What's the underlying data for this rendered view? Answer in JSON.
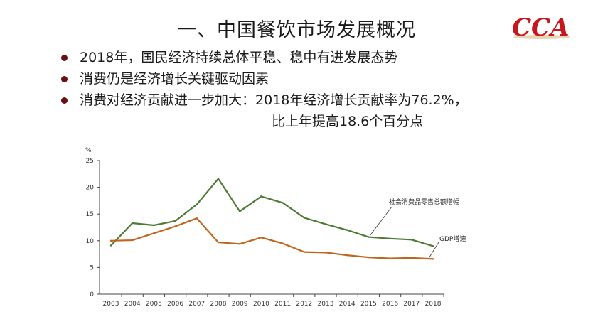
{
  "slide": {
    "title": "一、中国餐饮市场发展概况",
    "logo_text": "CCA",
    "bullets": [
      "2018年，国民经济持续总体平稳、稳中有进发展态势",
      "消费仍是经济增长关键驱动因素",
      "消费对经济贡献进一步加大：2018年经济增长贡献率为76.2%，"
    ],
    "bullet_continuation": "比上年提高18.6个百分点"
  },
  "colors": {
    "retail_series": "#4e7a34",
    "gdp_series": "#c0651e",
    "logo_red": "#c8161d",
    "bullet": "#6b1010"
  },
  "chart_data": {
    "type": "line",
    "title": "",
    "xlabel": "",
    "ylabel": "%",
    "x": [
      "2003",
      "2004",
      "2005",
      "2006",
      "2007",
      "2008",
      "2009",
      "2010",
      "2011",
      "2012",
      "2013",
      "2014",
      "2015",
      "2016",
      "2017",
      "2018"
    ],
    "ylim": [
      0,
      25
    ],
    "yticks": [
      0,
      5,
      10,
      15,
      20,
      25
    ],
    "grid": false,
    "series": [
      {
        "name": "社会消费品零售总额增幅",
        "values": [
          9.1,
          13.3,
          12.9,
          13.7,
          16.8,
          21.6,
          15.5,
          18.3,
          17.1,
          14.3,
          13.1,
          12.0,
          10.7,
          10.4,
          10.2,
          9.0
        ]
      },
      {
        "name": "GDP增速",
        "values": [
          10.0,
          10.1,
          11.4,
          12.7,
          14.2,
          9.7,
          9.4,
          10.6,
          9.5,
          7.9,
          7.8,
          7.3,
          6.9,
          6.7,
          6.8,
          6.6
        ]
      }
    ]
  }
}
